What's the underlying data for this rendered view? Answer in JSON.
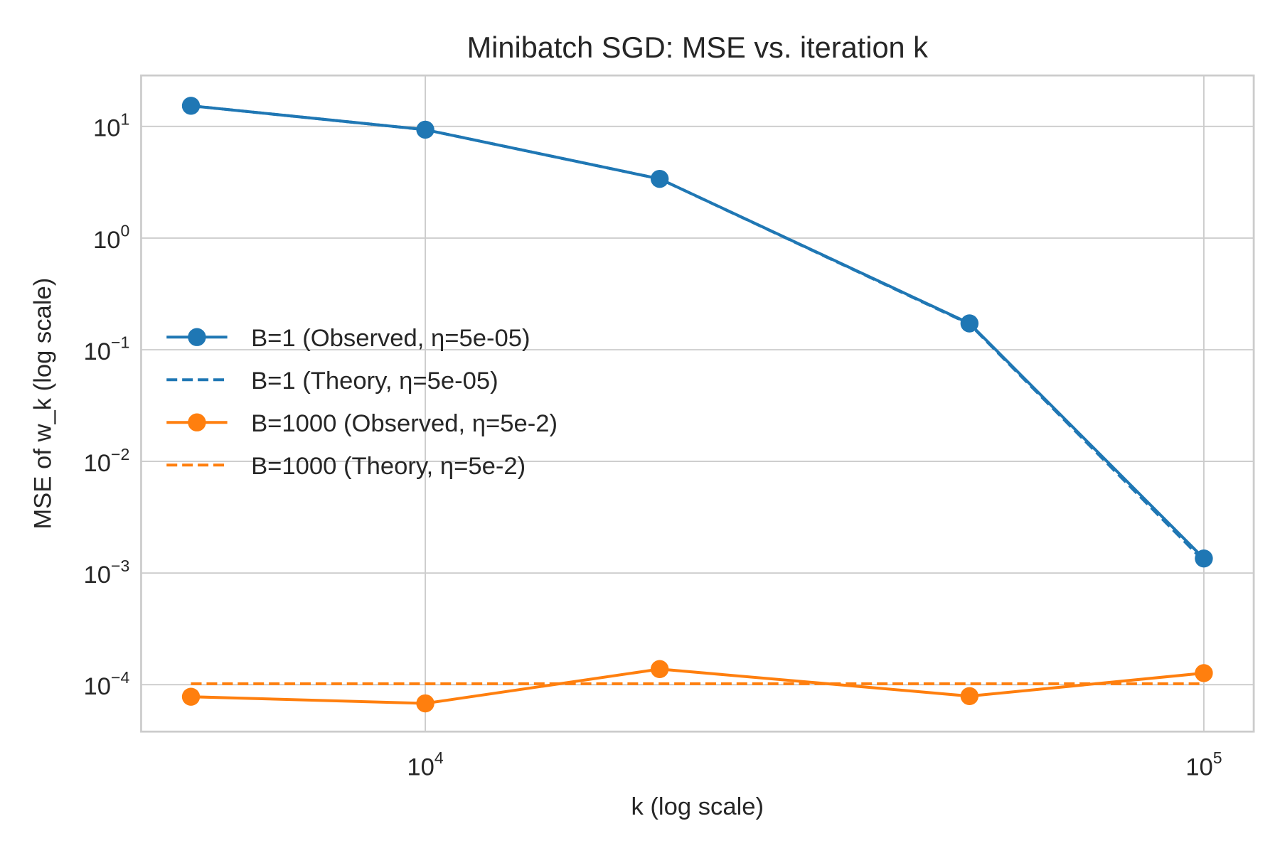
{
  "chart_data": {
    "type": "line",
    "title": "Minibatch SGD: MSE vs. iteration k",
    "xlabel": "k (log scale)",
    "ylabel": "MSE of w_k (log scale)",
    "xscale": "log",
    "yscale": "log",
    "xlim": [
      4315,
      115900
    ],
    "ylim": [
      3.8e-05,
      28.6
    ],
    "grid": true,
    "legend_position": "center-left",
    "x_ticks": [
      {
        "value": 10000,
        "base": "10",
        "exp": "4"
      },
      {
        "value": 100000,
        "base": "10",
        "exp": "5"
      }
    ],
    "y_ticks": [
      {
        "value": 10,
        "base": "10",
        "exp": "1"
      },
      {
        "value": 1,
        "base": "10",
        "exp": "0"
      },
      {
        "value": 0.1,
        "base": "10",
        "exp": "−1"
      },
      {
        "value": 0.01,
        "base": "10",
        "exp": "−2"
      },
      {
        "value": 0.001,
        "base": "10",
        "exp": "−3"
      },
      {
        "value": 0.0001,
        "base": "10",
        "exp": "−4"
      }
    ],
    "x": [
      5000,
      10000,
      20000,
      50000,
      100000
    ],
    "series": [
      {
        "name": "B=1 (Observed, η=5e-05)",
        "color": "#1f77b4",
        "style": "solid",
        "marker": "circle",
        "values": [
          15.3,
          9.35,
          3.39,
          0.172,
          0.00135
        ]
      },
      {
        "name": "B=1 (Theory, η=5e-05)",
        "color": "#1f77b4",
        "style": "dashed",
        "marker": "none",
        "values": [
          15.3,
          9.35,
          3.39,
          0.17,
          0.00128
        ]
      },
      {
        "name": "B=1000 (Observed, η=5e-2)",
        "color": "#ff7f0e",
        "style": "solid",
        "marker": "circle",
        "values": [
          7.8e-05,
          6.8e-05,
          0.000138,
          7.9e-05,
          0.000127
        ]
      },
      {
        "name": "B=1000 (Theory, η=5e-2)",
        "color": "#ff7f0e",
        "style": "dashed",
        "marker": "none",
        "values": [
          0.000102,
          0.000102,
          0.000102,
          0.000102,
          0.000102
        ]
      }
    ]
  }
}
